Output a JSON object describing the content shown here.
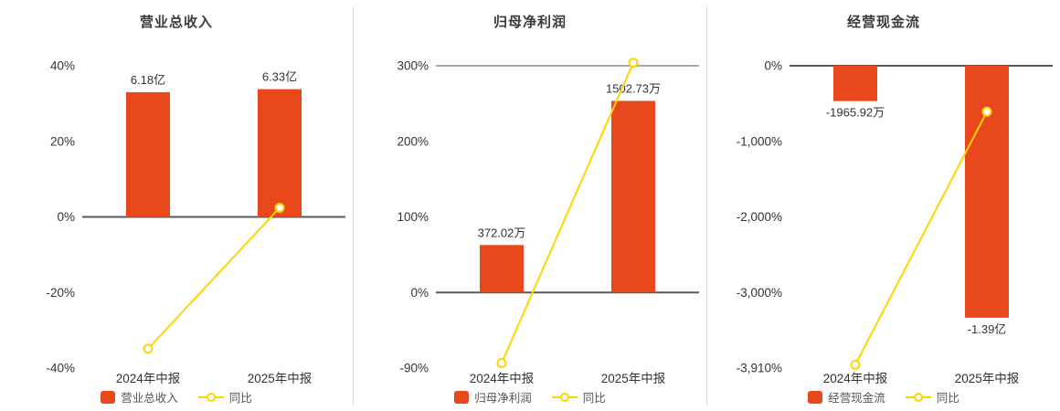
{
  "colors": {
    "background": "#ffffff",
    "bar": "#e8481c",
    "line": "#ffd400",
    "marker_fill": "#ffffff",
    "zero_axis": "#595959",
    "gridline": "#8c8c8c",
    "tick_text": "#333333",
    "value_text": "#333333",
    "category_text": "#333333",
    "title_text": "#3b3b3b",
    "legend_text": "#555555",
    "divider": "#d9d9d9"
  },
  "chart_data": [
    {
      "type": "bar",
      "title": "营业总收入",
      "categories": [
        "2024年中报",
        "2025年中报"
      ],
      "series": [
        {
          "name": "营业总收入",
          "kind": "bar",
          "unit": "亿",
          "values": [
            6.18,
            6.33
          ],
          "labels": [
            "6.18亿",
            "6.33亿"
          ]
        },
        {
          "name": "同比",
          "kind": "line",
          "unit": "%",
          "values": [
            -34.9,
            2.43
          ]
        }
      ],
      "yticks": [
        {
          "label": "40%",
          "value": 40
        },
        {
          "label": "20%",
          "value": 20
        },
        {
          "label": "0%",
          "value": 0
        },
        {
          "label": "-20%",
          "value": -20
        },
        {
          "label": "-40%",
          "value": -40
        }
      ],
      "ylim": [
        -40,
        40
      ],
      "gridlines": [],
      "legend_position": "bottom"
    },
    {
      "type": "bar",
      "title": "归母净利润",
      "categories": [
        "2024年中报",
        "2025年中报"
      ],
      "series": [
        {
          "name": "归母净利润",
          "kind": "bar",
          "unit": "万",
          "values": [
            372.02,
            1502.73
          ],
          "labels": [
            "372.02万",
            "1502.73万"
          ]
        },
        {
          "name": "同比",
          "kind": "line",
          "unit": "%",
          "values": [
            -84,
            303.9
          ]
        }
      ],
      "yticks": [
        {
          "label": "300%",
          "value": 300
        },
        {
          "label": "200%",
          "value": 200
        },
        {
          "label": "100%",
          "value": 100
        },
        {
          "label": "0%",
          "value": 0
        },
        {
          "label": "-90%",
          "value": -90
        }
      ],
      "ylim": [
        -90,
        300
      ],
      "gridlines": [
        300
      ],
      "legend_position": "bottom"
    },
    {
      "type": "bar",
      "title": "经营现金流",
      "categories": [
        "2024年中报",
        "2025年中报"
      ],
      "series": [
        {
          "name": "经营现金流",
          "kind": "bar",
          "unit": "万",
          "values": [
            -1965.92,
            -13900
          ],
          "labels": [
            "-1965.92万",
            "-1.39亿"
          ]
        },
        {
          "name": "同比",
          "kind": "line",
          "unit": "%",
          "values": [
            -3870,
            -607
          ]
        }
      ],
      "yticks": [
        {
          "label": "0%",
          "value": 0
        },
        {
          "label": "-1,000%",
          "value": -1000
        },
        {
          "label": "-2,000%",
          "value": -2000
        },
        {
          "label": "-3,000%",
          "value": -3000
        },
        {
          "label": "-3,910%",
          "value": -3910
        }
      ],
      "ylim": [
        -3910,
        0
      ],
      "gridlines": [],
      "legend_position": "bottom"
    }
  ]
}
